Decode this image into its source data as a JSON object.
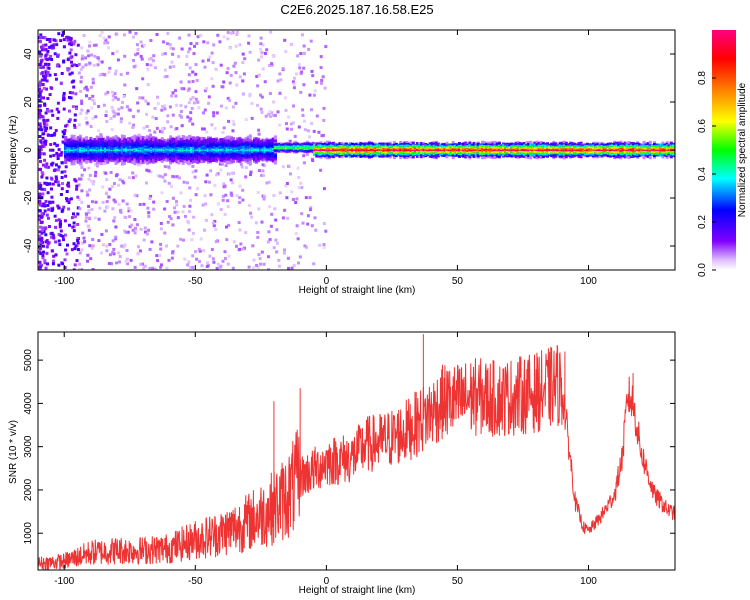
{
  "title": "C2E6.2025.187.16.58.E25",
  "chart_data": [
    {
      "type": "heatmap",
      "xlabel": "Height of straight line (km)",
      "ylabel": "Frequency (Hz)",
      "xlim": [
        -110,
        133
      ],
      "ylim": [
        -50,
        50
      ],
      "xticks": [
        -100,
        -50,
        0,
        50,
        100
      ],
      "yticks": [
        -40,
        -20,
        0,
        20,
        40
      ],
      "colorbar": {
        "label": "Normalized spectral amplitude",
        "range": [
          0,
          1
        ],
        "ticks": [
          0.0,
          0.2,
          0.4,
          0.6,
          0.8
        ],
        "colormap": [
          "#ffffff",
          "#8000ff",
          "#0000ff",
          "#00ffff",
          "#00ff00",
          "#ffff00",
          "#ff8000",
          "#ff0000",
          "#ff0080"
        ]
      },
      "bands": [
        {
          "x_start": -100,
          "x_end": -20,
          "center_hz": 0,
          "half_width_hz": 5,
          "peak_amplitude": 0.35
        },
        {
          "x_start": -20,
          "x_end": -5,
          "center_hz": 1,
          "half_width_hz": 2,
          "peak_amplitude": 0.55
        },
        {
          "x_start": -5,
          "x_end": 133,
          "center_hz": 0,
          "half_width_hz": 3,
          "peak_amplitude": 0.95
        }
      ]
    },
    {
      "type": "line",
      "xlabel": "Height of straight line (km)",
      "ylabel": "SNR (10 * v/v)",
      "xlim": [
        -110,
        133
      ],
      "ylim": [
        150,
        5650
      ],
      "xticks": [
        -100,
        -50,
        0,
        50,
        100
      ],
      "yticks": [
        1000,
        2000,
        3000,
        4000,
        5000
      ],
      "color": "#ee3333",
      "x": [
        -110,
        -100,
        -90,
        -80,
        -70,
        -60,
        -50,
        -40,
        -30,
        -20,
        -15,
        -10,
        -5,
        0,
        5,
        10,
        15,
        20,
        25,
        30,
        35,
        40,
        45,
        50,
        55,
        60,
        65,
        70,
        75,
        80,
        85,
        88,
        90,
        92,
        95,
        98,
        100,
        105,
        110,
        113,
        115,
        117,
        120,
        125,
        130,
        133
      ],
      "y": [
        300,
        350,
        550,
        600,
        600,
        650,
        850,
        1000,
        1250,
        1600,
        1850,
        2300,
        2450,
        2650,
        2700,
        2750,
        3050,
        3100,
        3200,
        3350,
        3550,
        3800,
        4050,
        4050,
        4150,
        4150,
        4100,
        4150,
        4200,
        4250,
        4350,
        4450,
        4300,
        3300,
        1700,
        1150,
        1050,
        1400,
        1900,
        2800,
        4200,
        4000,
        2900,
        1900,
        1550,
        1450
      ],
      "spikes": [
        {
          "x": -20,
          "y": 4050
        },
        {
          "x": -10,
          "y": 4350
        },
        {
          "x": 37,
          "y": 5600
        },
        {
          "x": 89,
          "y": 5150
        },
        {
          "x": 91,
          "y": 5200
        },
        {
          "x": 117,
          "y": 4700
        }
      ]
    }
  ]
}
